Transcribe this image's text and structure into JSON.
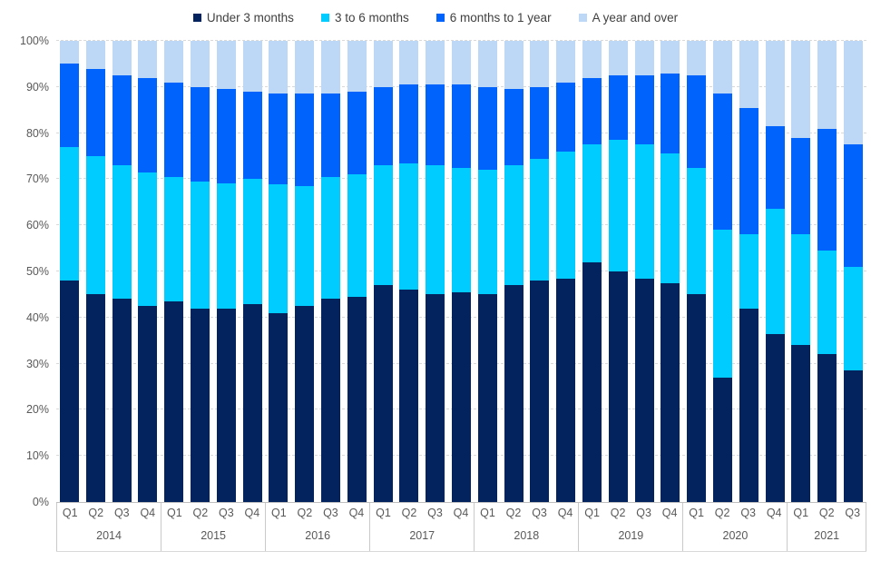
{
  "chart_data": {
    "type": "bar",
    "subtype": "100-percent-stacked-column",
    "title": "",
    "legend_position": "top",
    "grid": "horizontal-dashed",
    "colors": {
      "under_3_months": "#02235E",
      "3_to_6_months": "#00CCFF",
      "6_months_to_1_year": "#0063FB",
      "a_year_and_over": "#BDD8F7",
      "gridline": "#D9D9D9",
      "axis_line": "#BFBFBF",
      "axis_text": "#595959",
      "legend_text": "#404040"
    },
    "y_axis": {
      "min": 0,
      "max": 100,
      "tick_step": 10,
      "tick_labels": [
        "0%",
        "10%",
        "20%",
        "30%",
        "40%",
        "50%",
        "60%",
        "70%",
        "80%",
        "90%",
        "100%"
      ]
    },
    "x_axis": {
      "year_groups": [
        {
          "label": "2014",
          "quarters": [
            "Q1",
            "Q2",
            "Q3",
            "Q4"
          ]
        },
        {
          "label": "2015",
          "quarters": [
            "Q1",
            "Q2",
            "Q3",
            "Q4"
          ]
        },
        {
          "label": "2016",
          "quarters": [
            "Q1",
            "Q2",
            "Q3",
            "Q4"
          ]
        },
        {
          "label": "2017",
          "quarters": [
            "Q1",
            "Q2",
            "Q3",
            "Q4"
          ]
        },
        {
          "label": "2018",
          "quarters": [
            "Q1",
            "Q2",
            "Q3",
            "Q4"
          ]
        },
        {
          "label": "2019",
          "quarters": [
            "Q1",
            "Q2",
            "Q3",
            "Q4"
          ]
        },
        {
          "label": "2020",
          "quarters": [
            "Q1",
            "Q2",
            "Q3",
            "Q4"
          ]
        },
        {
          "label": "2021",
          "quarters": [
            "Q1",
            "Q2",
            "Q3"
          ]
        }
      ]
    },
    "series": [
      {
        "name": "Under 3 months",
        "color": "#02235E",
        "values": [
          48,
          45,
          44,
          42.5,
          43.5,
          42,
          42,
          43,
          41,
          42.5,
          44,
          44.5,
          47,
          46,
          45,
          45.5,
          45,
          47,
          48,
          48.5,
          52,
          50,
          48.5,
          47.5,
          45,
          27,
          42,
          36.5,
          34,
          32,
          28.5
        ]
      },
      {
        "name": "3 to 6 months",
        "color": "#00CCFF",
        "values": [
          29,
          30,
          29,
          29,
          27,
          27.5,
          27,
          27,
          28,
          26,
          26.5,
          26.5,
          26,
          27.5,
          28,
          27,
          27,
          26,
          26.5,
          27.5,
          25.5,
          28.5,
          29,
          28,
          27.5,
          32,
          16,
          27,
          24,
          22.5,
          22.5
        ]
      },
      {
        "name": "6 months to 1 year",
        "color": "#0063FB",
        "values": [
          18,
          19,
          19.5,
          20.5,
          20.5,
          20.5,
          20.5,
          19,
          19.5,
          20,
          18,
          18,
          17,
          17,
          17.5,
          18,
          18,
          16.5,
          15.5,
          15,
          14.5,
          14,
          15,
          17.5,
          20,
          29.5,
          27.5,
          18,
          21,
          26.5,
          26.5
        ]
      },
      {
        "name": "A year and over",
        "color": "#BDD8F7",
        "values": [
          5,
          6,
          7.5,
          8,
          9,
          10,
          10.5,
          11,
          11.5,
          11.5,
          11.5,
          11,
          10,
          9.5,
          9.5,
          9.5,
          10,
          10.5,
          10,
          9,
          8,
          7.5,
          7.5,
          7,
          7.5,
          11.5,
          14.5,
          18.5,
          21,
          19,
          22.5
        ]
      }
    ]
  }
}
